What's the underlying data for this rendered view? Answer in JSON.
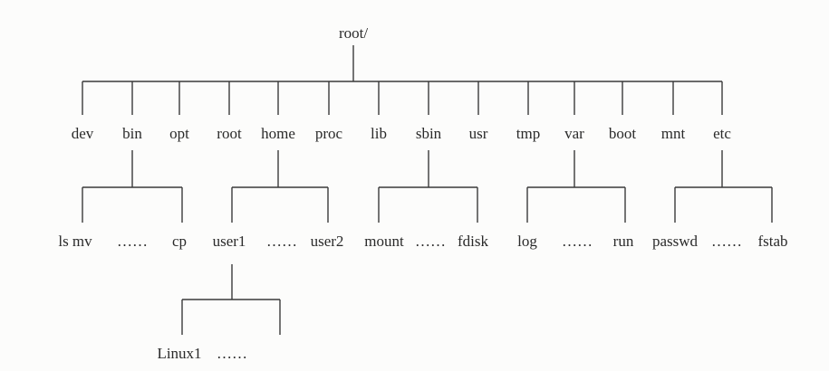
{
  "tree": {
    "root": "root/",
    "level1": [
      "dev",
      "bin",
      "opt",
      "root",
      "home",
      "proc",
      "lib",
      "sbin",
      "usr",
      "tmp",
      "var",
      "boot",
      "mnt",
      "etc"
    ],
    "level2": {
      "bin": [
        "ls mv",
        "……",
        "cp"
      ],
      "home": [
        "user1",
        "……",
        "user2"
      ],
      "sbin": [
        "mount",
        "……",
        "fdisk"
      ],
      "var": [
        "log",
        "……",
        "run"
      ],
      "etc": [
        "passwd",
        "……",
        "fstab"
      ]
    },
    "level3": {
      "user1": [
        "Linux1",
        "……"
      ]
    }
  },
  "colors": {
    "line": "#3a3a3a",
    "text": "#2a2a2a",
    "background": "#fcfcfb"
  }
}
